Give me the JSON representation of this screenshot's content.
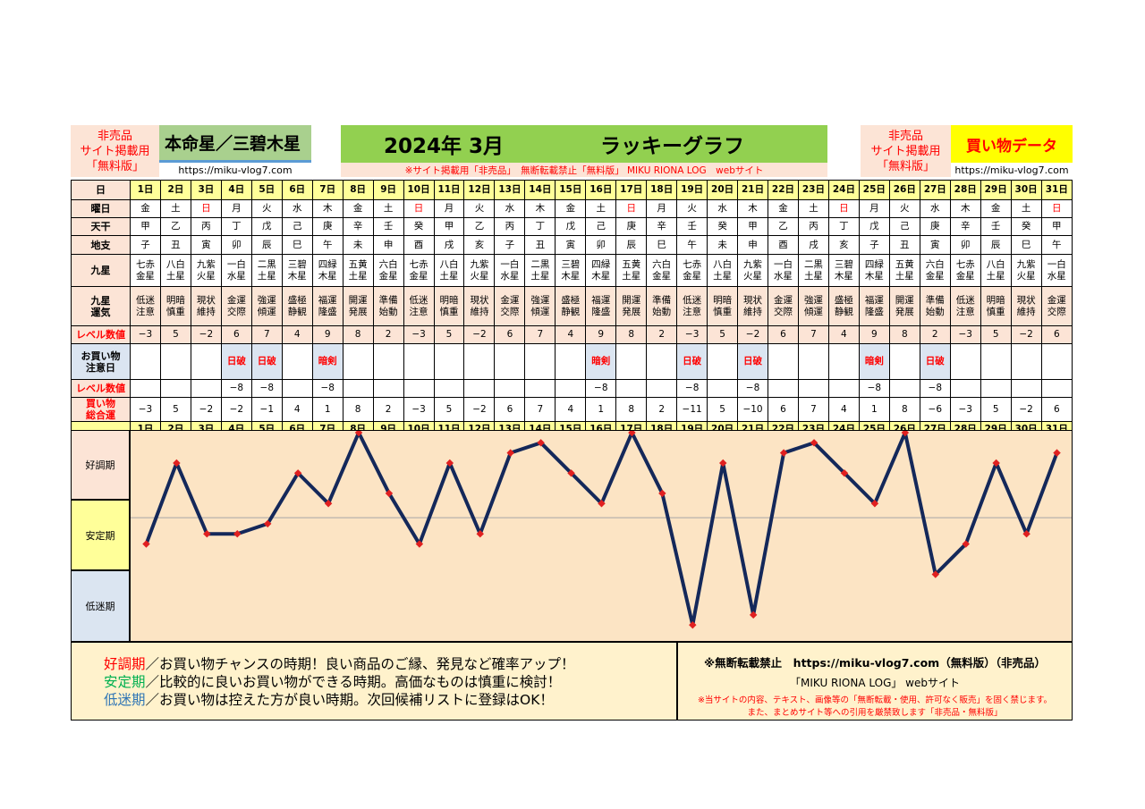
{
  "header": {
    "not_for_sale_left": [
      "非売品",
      "サイト掲載用",
      "「無料版」"
    ],
    "not_for_sale_right": [
      "非売品",
      "サイト掲載用",
      "「無料版」"
    ],
    "honmei": "本命星／三碧木星",
    "url_left": "https://miku-vlog7.com",
    "month_title": "2024年 3月",
    "graph_title": "ラッキーグラフ",
    "notice": "※サイト掲載用「非売品」　無断転載禁止「無料版」 MIKU RIONA LOG　webサイト",
    "shop_title": "買い物データ",
    "url_right": "https://miku-vlog7.com"
  },
  "row_labels": {
    "day": "日",
    "weekday": "曜日",
    "tenkan": "天干",
    "chishi": "地支",
    "kyusei": "九星",
    "kyusei_unki": [
      "九星",
      "運気"
    ],
    "level": "レベル数値",
    "shop_warn": [
      "お買い物",
      "注意日"
    ],
    "level2": "レベル数値",
    "total": [
      "買い物",
      "総合運"
    ]
  },
  "days": [
    "1日",
    "2日",
    "3日",
    "4日",
    "5日",
    "6日",
    "7日",
    "8日",
    "9日",
    "10日",
    "11日",
    "12日",
    "13日",
    "14日",
    "15日",
    "16日",
    "17日",
    "18日",
    "19日",
    "20日",
    "21日",
    "22日",
    "23日",
    "24日",
    "25日",
    "26日",
    "27日",
    "28日",
    "29日",
    "30日",
    "31日"
  ],
  "weekdays": [
    "金",
    "土",
    "日",
    "月",
    "火",
    "水",
    "木",
    "金",
    "土",
    "日",
    "月",
    "火",
    "水",
    "木",
    "金",
    "土",
    "日",
    "月",
    "火",
    "水",
    "木",
    "金",
    "土",
    "日",
    "月",
    "火",
    "水",
    "木",
    "金",
    "土",
    "日"
  ],
  "tenkan": [
    "甲",
    "乙",
    "丙",
    "丁",
    "戊",
    "己",
    "庚",
    "辛",
    "壬",
    "癸",
    "甲",
    "乙",
    "丙",
    "丁",
    "戊",
    "己",
    "庚",
    "辛",
    "壬",
    "癸",
    "甲",
    "乙",
    "丙",
    "丁",
    "戊",
    "己",
    "庚",
    "辛",
    "壬",
    "癸",
    "甲"
  ],
  "chishi": [
    "子",
    "丑",
    "寅",
    "卯",
    "辰",
    "巳",
    "午",
    "未",
    "申",
    "酉",
    "戌",
    "亥",
    "子",
    "丑",
    "寅",
    "卯",
    "辰",
    "巳",
    "午",
    "未",
    "申",
    "酉",
    "戌",
    "亥",
    "子",
    "丑",
    "寅",
    "卯",
    "辰",
    "巳",
    "午"
  ],
  "kyusei": [
    [
      "七赤",
      "金星"
    ],
    [
      "八白",
      "土星"
    ],
    [
      "九紫",
      "火星"
    ],
    [
      "一白",
      "水星"
    ],
    [
      "二黒",
      "土星"
    ],
    [
      "三碧",
      "木星"
    ],
    [
      "四緑",
      "木星"
    ],
    [
      "五黄",
      "土星"
    ],
    [
      "六白",
      "金星"
    ],
    [
      "七赤",
      "金星"
    ],
    [
      "八白",
      "土星"
    ],
    [
      "九紫",
      "火星"
    ],
    [
      "一白",
      "水星"
    ],
    [
      "二黒",
      "土星"
    ],
    [
      "三碧",
      "木星"
    ],
    [
      "四緑",
      "木星"
    ],
    [
      "五黄",
      "土星"
    ],
    [
      "六白",
      "金星"
    ],
    [
      "七赤",
      "金星"
    ],
    [
      "八白",
      "土星"
    ],
    [
      "九紫",
      "火星"
    ],
    [
      "一白",
      "水星"
    ],
    [
      "二黒",
      "土星"
    ],
    [
      "三碧",
      "木星"
    ],
    [
      "四緑",
      "木星"
    ],
    [
      "五黄",
      "土星"
    ],
    [
      "六白",
      "金星"
    ],
    [
      "七赤",
      "金星"
    ],
    [
      "八白",
      "土星"
    ],
    [
      "九紫",
      "火星"
    ],
    [
      "一白",
      "水星"
    ]
  ],
  "unki": [
    [
      "低迷",
      "注意"
    ],
    [
      "明暗",
      "慎重"
    ],
    [
      "現状",
      "維持"
    ],
    [
      "金運",
      "交際"
    ],
    [
      "強運",
      "傾運"
    ],
    [
      "盛極",
      "静観"
    ],
    [
      "福運",
      "隆盛"
    ],
    [
      "開運",
      "発展"
    ],
    [
      "準備",
      "始動"
    ],
    [
      "低迷",
      "注意"
    ],
    [
      "明暗",
      "慎重"
    ],
    [
      "現状",
      "維持"
    ],
    [
      "金運",
      "交際"
    ],
    [
      "強運",
      "傾運"
    ],
    [
      "盛極",
      "静観"
    ],
    [
      "福運",
      "隆盛"
    ],
    [
      "開運",
      "発展"
    ],
    [
      "準備",
      "始動"
    ],
    [
      "低迷",
      "注意"
    ],
    [
      "明暗",
      "慎重"
    ],
    [
      "現状",
      "維持"
    ],
    [
      "金運",
      "交際"
    ],
    [
      "強運",
      "傾運"
    ],
    [
      "盛極",
      "静観"
    ],
    [
      "福運",
      "隆盛"
    ],
    [
      "開運",
      "発展"
    ],
    [
      "準備",
      "始動"
    ],
    [
      "低迷",
      "注意"
    ],
    [
      "明暗",
      "慎重"
    ],
    [
      "現状",
      "維持"
    ],
    [
      "金運",
      "交際"
    ]
  ],
  "levels": [
    "−3",
    "5",
    "−2",
    "6",
    "7",
    "4",
    "9",
    "8",
    "2",
    "−3",
    "5",
    "−2",
    "6",
    "7",
    "4",
    "9",
    "8",
    "2",
    "−3",
    "5",
    "−2",
    "6",
    "7",
    "4",
    "9",
    "8",
    "2",
    "−3",
    "5",
    "−2",
    "6"
  ],
  "warnings": [
    "",
    "",
    "",
    "日破",
    "日破",
    "",
    "暗剣",
    "",
    "",
    "",
    "",
    "",
    "",
    "",
    "",
    "暗剣",
    "",
    "",
    "日破",
    "",
    "日破",
    "",
    "",
    "",
    "暗剣",
    "",
    "日破",
    "",
    "",
    "",
    ""
  ],
  "levels2": [
    "",
    "",
    "",
    "−8",
    "−8",
    "",
    "−8",
    "",
    "",
    "",
    "",
    "",
    "",
    "",
    "",
    "−8",
    "",
    "",
    "−8",
    "",
    "−8",
    "",
    "",
    "",
    "−8",
    "",
    "−8",
    "",
    "",
    "",
    ""
  ],
  "totals": [
    "−3",
    "5",
    "−2",
    "−2",
    "−1",
    "4",
    "1",
    "8",
    "2",
    "−3",
    "5",
    "−2",
    "6",
    "7",
    "4",
    "1",
    "8",
    "2",
    "−11",
    "5",
    "−10",
    "6",
    "7",
    "4",
    "1",
    "8",
    "−6",
    "−3",
    "5",
    "−2",
    "6"
  ],
  "colors": {
    "line": "#14285a",
    "point": "#e02020",
    "sunday": "#ff0000"
  },
  "zones": {
    "good": "好調期",
    "stable": "安定期",
    "low": "低迷期"
  },
  "chart_data": {
    "type": "line",
    "title": "ラッキーグラフ",
    "x": [
      "1日",
      "2日",
      "3日",
      "4日",
      "5日",
      "6日",
      "7日",
      "8日",
      "9日",
      "10日",
      "11日",
      "12日",
      "13日",
      "14日",
      "15日",
      "16日",
      "17日",
      "18日",
      "19日",
      "20日",
      "21日",
      "22日",
      "23日",
      "24日",
      "25日",
      "26日",
      "27日",
      "28日",
      "29日",
      "30日",
      "31日"
    ],
    "series": [
      {
        "values": [
          -3,
          5,
          -2,
          -2,
          -1,
          4,
          1,
          8,
          2,
          -3,
          5,
          -2,
          6,
          7,
          4,
          1,
          8,
          2,
          -11,
          5,
          -10,
          6,
          7,
          4,
          1,
          8,
          -6,
          -3,
          5,
          -2,
          6
        ]
      }
    ],
    "ylim": [
      -11,
      8
    ],
    "grid": false
  },
  "footer": {
    "good_term": "好調期",
    "good_text": "／お買い物チャンスの時期！良い商品のご縁、発見など確率アップ！",
    "stable_term": "安定期",
    "stable_text": "／比較的に良いお買い物ができる時期。高価なものは慎重に検討！",
    "low_term": "低迷期",
    "low_text": "／お買い物は控えた方が良い時期。次回候補リストに登録はOK！",
    "copyright_line": "※無断転載禁止　https://miku-vlog7.com（無料版）（非売品）",
    "site_line": "「MIKU RIONA LOG」 webサイト",
    "warn1": "※当サイトの内容、テキスト、画像等の「無断転載・使用、許可なく販売」を固く禁じます。",
    "warn2": "また、まとめサイト等への引用を厳禁致します「非売品・無料版」"
  }
}
